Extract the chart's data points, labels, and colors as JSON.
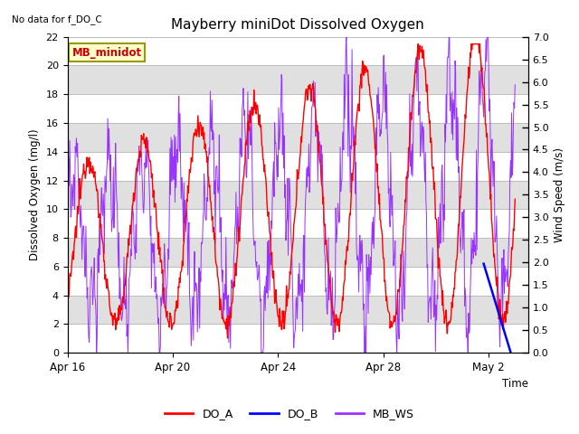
{
  "title": "Mayberry miniDot Dissolved Oxygen",
  "no_data_text": "No data for f_DO_C",
  "ylabel_left": "Dissolved Oxygen (mg/l)",
  "ylabel_right": "Wind Speed (m/s)",
  "xlabel": "Time",
  "ylim_left": [
    0,
    22
  ],
  "ylim_right": [
    0.0,
    7.0
  ],
  "yticks_left": [
    0,
    2,
    4,
    6,
    8,
    10,
    12,
    14,
    16,
    18,
    20,
    22
  ],
  "yticks_right": [
    0.0,
    0.5,
    1.0,
    1.5,
    2.0,
    2.5,
    3.0,
    3.5,
    4.0,
    4.5,
    5.0,
    5.5,
    6.0,
    6.5,
    7.0
  ],
  "xtick_labels": [
    "Apr 16",
    "Apr 20",
    "Apr 24",
    "Apr 28",
    "May 2"
  ],
  "xtick_positions": [
    0,
    4,
    8,
    12,
    16
  ],
  "xlim": [
    0,
    17.5
  ],
  "color_DO_A": "#ff0000",
  "color_DO_B": "#0000ff",
  "color_MB_WS": "#9933ff",
  "annotation_box": "MB_minidot",
  "annotation_color": "#cc0000",
  "annotation_bg": "#ffffcc",
  "annotation_border": "#999900",
  "bg_band_color": "#e0e0e0",
  "figsize": [
    6.4,
    4.8
  ],
  "dpi": 100
}
